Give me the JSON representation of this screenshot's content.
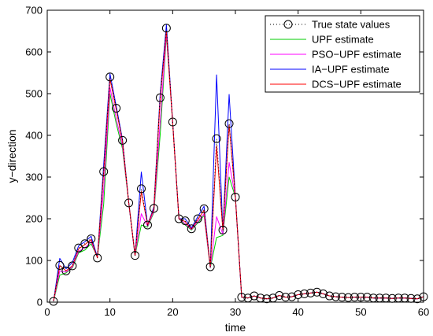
{
  "chart_data": {
    "type": "line",
    "xlabel": "time",
    "ylabel": "y−direction",
    "xlim": [
      0,
      60
    ],
    "ylim": [
      0,
      700
    ],
    "xticks": [
      0,
      10,
      20,
      30,
      40,
      50,
      60
    ],
    "yticks": [
      0,
      100,
      200,
      300,
      400,
      500,
      600,
      700
    ],
    "grid": false,
    "legend_position": "top-right",
    "x": [
      1,
      2,
      3,
      4,
      5,
      6,
      7,
      8,
      9,
      10,
      11,
      12,
      13,
      14,
      15,
      16,
      17,
      18,
      19,
      20,
      21,
      22,
      23,
      24,
      25,
      26,
      27,
      28,
      29,
      30,
      31,
      32,
      33,
      34,
      35,
      36,
      37,
      38,
      39,
      40,
      41,
      42,
      43,
      44,
      45,
      46,
      47,
      48,
      49,
      50,
      51,
      52,
      53,
      54,
      55,
      56,
      57,
      58,
      59,
      60
    ],
    "series": [
      {
        "name": "True state values",
        "style": "dotted-circles",
        "color": "#000000",
        "values": [
          2,
          88,
          75,
          87,
          130,
          140,
          152,
          106,
          313,
          540,
          465,
          388,
          238,
          112,
          272,
          185,
          225,
          490,
          657,
          432,
          200,
          195,
          176,
          200,
          224,
          85,
          392,
          173,
          428,
          252,
          12,
          10,
          15,
          10,
          8,
          10,
          16,
          12,
          13,
          18,
          20,
          22,
          24,
          20,
          15,
          13,
          12,
          11,
          12,
          12,
          12,
          10,
          10,
          10,
          9,
          10,
          10,
          9,
          8,
          13
        ]
      },
      {
        "name": "UPF estimate",
        "style": "line",
        "color": "#00cc00",
        "values": [
          2,
          65,
          70,
          82,
          118,
          125,
          140,
          108,
          235,
          500,
          428,
          368,
          238,
          112,
          185,
          180,
          215,
          400,
          640,
          430,
          200,
          185,
          173,
          190,
          208,
          82,
          155,
          160,
          300,
          252,
          12,
          10,
          15,
          10,
          8,
          10,
          16,
          12,
          13,
          18,
          20,
          22,
          24,
          20,
          15,
          13,
          12,
          11,
          12,
          12,
          12,
          10,
          10,
          10,
          9,
          10,
          10,
          9,
          8,
          13
        ]
      },
      {
        "name": "PSO−UPF estimate",
        "style": "line",
        "color": "#ff00ff",
        "values": [
          2,
          75,
          72,
          84,
          122,
          130,
          145,
          107,
          270,
          515,
          440,
          375,
          238,
          112,
          212,
          182,
          218,
          430,
          645,
          430,
          200,
          188,
          174,
          193,
          212,
          83,
          205,
          163,
          335,
          252,
          12,
          10,
          15,
          10,
          8,
          10,
          16,
          12,
          13,
          18,
          20,
          22,
          24,
          20,
          15,
          13,
          12,
          11,
          12,
          12,
          12,
          10,
          10,
          10,
          9,
          10,
          10,
          9,
          8,
          13
        ]
      },
      {
        "name": "IA−UPF estimate",
        "style": "line",
        "color": "#0000ff",
        "values": [
          2,
          105,
          80,
          95,
          135,
          145,
          158,
          108,
          330,
          548,
          470,
          390,
          238,
          112,
          312,
          185,
          228,
          498,
          665,
          432,
          200,
          200,
          178,
          205,
          230,
          85,
          545,
          170,
          498,
          252,
          12,
          10,
          15,
          10,
          8,
          10,
          16,
          12,
          13,
          18,
          20,
          22,
          24,
          20,
          15,
          13,
          12,
          11,
          12,
          12,
          12,
          10,
          10,
          10,
          9,
          10,
          10,
          9,
          8,
          13
        ]
      },
      {
        "name": "DCS−UPF estimate",
        "style": "line",
        "color": "#ff0000",
        "values": [
          2,
          88,
          75,
          87,
          128,
          138,
          150,
          106,
          310,
          535,
          462,
          385,
          238,
          112,
          265,
          185,
          223,
          485,
          650,
          430,
          200,
          193,
          175,
          198,
          220,
          85,
          375,
          172,
          425,
          252,
          12,
          10,
          15,
          10,
          8,
          10,
          16,
          12,
          13,
          18,
          20,
          22,
          24,
          20,
          15,
          13,
          12,
          11,
          12,
          12,
          12,
          10,
          10,
          10,
          9,
          10,
          10,
          9,
          8,
          13
        ]
      }
    ]
  }
}
